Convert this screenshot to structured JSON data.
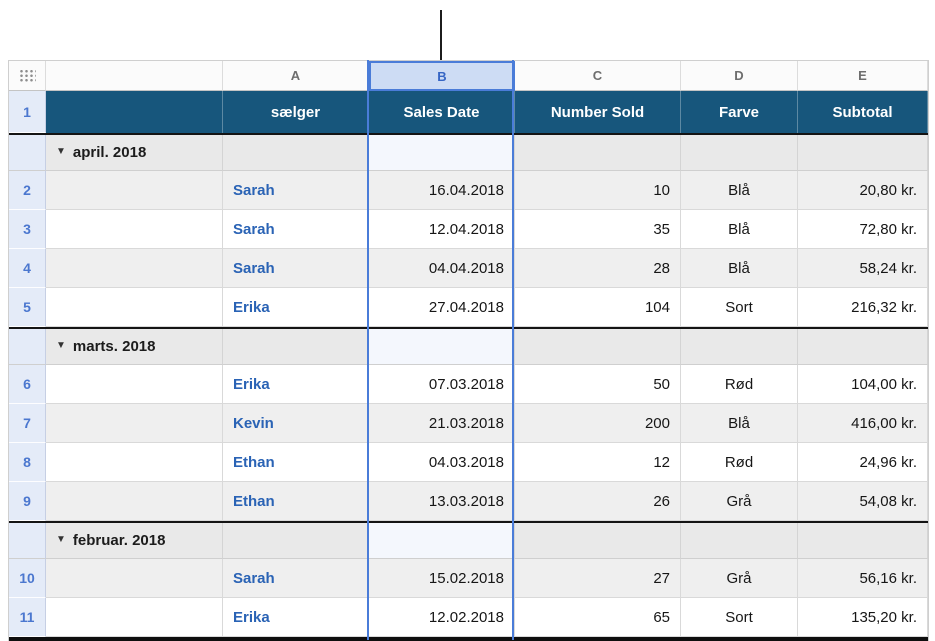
{
  "columns": {
    "letters": [
      "A",
      "B",
      "C",
      "D",
      "E"
    ],
    "selected": "B"
  },
  "header_row": {
    "number": "1",
    "cells": {
      "seller": "sælger",
      "date": "Sales Date",
      "sold": "Number Sold",
      "color": "Farve",
      "subtotal": "Subtotal"
    }
  },
  "groups": [
    {
      "disclosure": "▼",
      "label": "april. 2018"
    },
    {
      "disclosure": "▼",
      "label": "marts. 2018"
    },
    {
      "disclosure": "▼",
      "label": "februar. 2018"
    }
  ],
  "rows": [
    {
      "number": "2",
      "seller": "Sarah",
      "date": "16.04.2018",
      "sold": "10",
      "color": "Blå",
      "subtotal": "20,80 kr."
    },
    {
      "number": "3",
      "seller": "Sarah",
      "date": "12.04.2018",
      "sold": "35",
      "color": "Blå",
      "subtotal": "72,80 kr."
    },
    {
      "number": "4",
      "seller": "Sarah",
      "date": "04.04.2018",
      "sold": "28",
      "color": "Blå",
      "subtotal": "58,24 kr."
    },
    {
      "number": "5",
      "seller": "Erika",
      "date": "27.04.2018",
      "sold": "104",
      "color": "Sort",
      "subtotal": "216,32 kr."
    },
    {
      "number": "6",
      "seller": "Erika",
      "date": "07.03.2018",
      "sold": "50",
      "color": "Rød",
      "subtotal": "104,00 kr."
    },
    {
      "number": "7",
      "seller": "Kevin",
      "date": "21.03.2018",
      "sold": "200",
      "color": "Blå",
      "subtotal": "416,00 kr."
    },
    {
      "number": "8",
      "seller": "Ethan",
      "date": "04.03.2018",
      "sold": "12",
      "color": "Rød",
      "subtotal": "24,96 kr."
    },
    {
      "number": "9",
      "seller": "Ethan",
      "date": "13.03.2018",
      "sold": "26",
      "color": "Grå",
      "subtotal": "54,08 kr."
    },
    {
      "number": "10",
      "seller": "Sarah",
      "date": "15.02.2018",
      "sold": "27",
      "color": "Grå",
      "subtotal": "56,16 kr."
    },
    {
      "number": "11",
      "seller": "Erika",
      "date": "12.02.2018",
      "sold": "65",
      "color": "Sort",
      "subtotal": "135,20 kr."
    }
  ],
  "colors": {
    "header_bg": "#17567c",
    "selection_blue": "#4a7cd8",
    "row_number_blue": "#4b77cf",
    "seller_blue": "#2a63b5"
  }
}
